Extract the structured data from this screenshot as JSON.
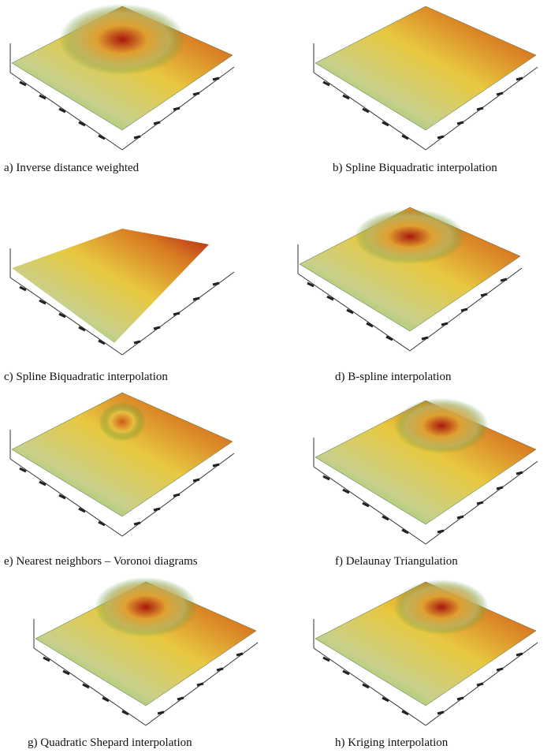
{
  "panels": [
    {
      "caption": "a) Inverse distance weighted"
    },
    {
      "caption": "b) Spline Biquadratic interpolation"
    },
    {
      "caption": "c) Spline Biquadratic interpolation"
    },
    {
      "caption": "d) B-spline interpolation"
    },
    {
      "caption": "e) Nearest neighbors – Voronoi diagrams"
    },
    {
      "caption": "f) Delaunay Triangulation"
    },
    {
      "caption": "g) Quadratic Shepard interpolation"
    },
    {
      "caption": "h) Kriging interpolation"
    }
  ]
}
